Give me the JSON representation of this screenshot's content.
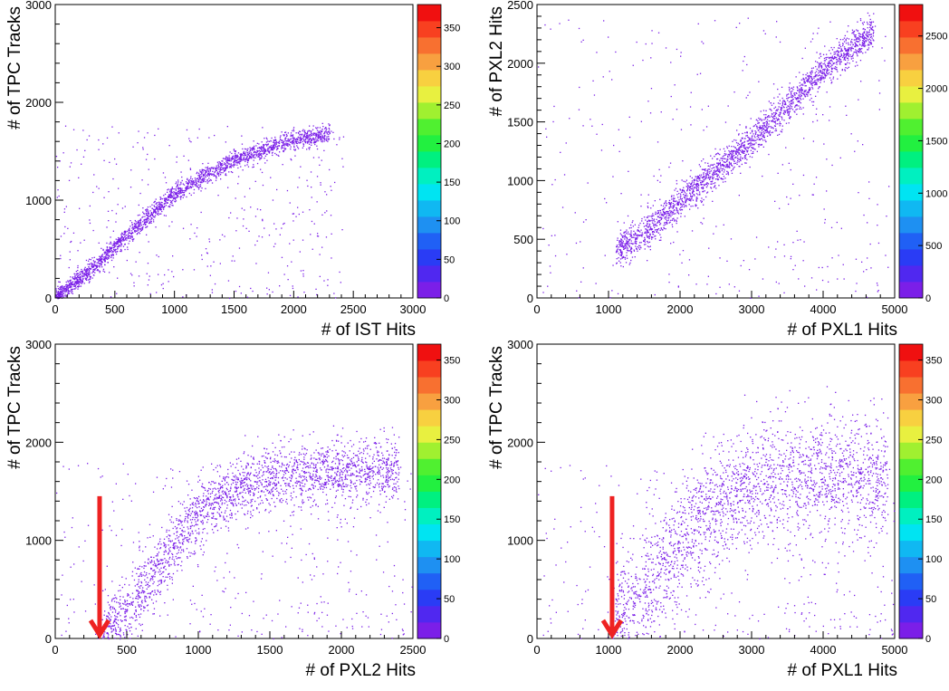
{
  "chart_data": [
    {
      "type": "heatmap",
      "xlabel": "# of IST Hits",
      "ylabel": "# of TPC Tracks",
      "xlim": [
        0,
        3000
      ],
      "ylim": [
        0,
        3000
      ],
      "xticks": [
        "0",
        "500",
        "1000",
        "1500",
        "2000",
        "2500",
        "3000"
      ],
      "yticks": [
        "0",
        "1000",
        "2000",
        "3000"
      ],
      "zlim": [
        0,
        380
      ],
      "zticks": [
        "0",
        "50",
        "100",
        "150",
        "200",
        "250",
        "300",
        "350"
      ],
      "correlation_band": [
        [
          0,
          0
        ],
        [
          300,
          300
        ],
        [
          600,
          640
        ],
        [
          1000,
          1080
        ],
        [
          1500,
          1420
        ],
        [
          2000,
          1620
        ],
        [
          2300,
          1680
        ]
      ],
      "band_width": 45,
      "scatter_note": "",
      "colors": {
        "marks": "#7b1fe8"
      }
    },
    {
      "type": "heatmap",
      "xlabel": "# of PXL1 Hits",
      "ylabel": "# of PXL2 Hits",
      "xlim": [
        0,
        5000
      ],
      "ylim": [
        0,
        2500
      ],
      "xticks": [
        "0",
        "1000",
        "2000",
        "3000",
        "4000",
        "5000"
      ],
      "yticks": [
        "0",
        "500",
        "1000",
        "1500",
        "2000",
        "2500"
      ],
      "zlim": [
        0,
        2800
      ],
      "zticks": [
        "0",
        "500",
        "1000",
        "1500",
        "2000",
        "2500"
      ],
      "correlation_band": [
        [
          1100,
          390
        ],
        [
          1500,
          560
        ],
        [
          2000,
          830
        ],
        [
          2500,
          1080
        ],
        [
          3000,
          1350
        ],
        [
          3500,
          1650
        ],
        [
          4000,
          1950
        ],
        [
          4700,
          2280
        ]
      ],
      "band_width": 70,
      "colors": {
        "marks": "#7b1fe8"
      }
    },
    {
      "type": "heatmap",
      "xlabel": "# of PXL2 Hits",
      "ylabel": "# of TPC Tracks",
      "xlim": [
        0,
        2500
      ],
      "ylim": [
        0,
        3000
      ],
      "xticks": [
        "0",
        "500",
        "1000",
        "1500",
        "2000",
        "2500"
      ],
      "yticks": [
        "0",
        "1000",
        "2000",
        "3000"
      ],
      "zlim": [
        0,
        370
      ],
      "zticks": [
        "0",
        "50",
        "100",
        "150",
        "200",
        "250",
        "300",
        "350"
      ],
      "correlation_band": [
        [
          330,
          0
        ],
        [
          500,
          300
        ],
        [
          700,
          700
        ],
        [
          900,
          1100
        ],
        [
          1100,
          1400
        ],
        [
          1400,
          1620
        ],
        [
          1800,
          1700
        ],
        [
          2400,
          1720
        ]
      ],
      "band_width": 160,
      "arrow": {
        "x": 310,
        "y_top": 1450,
        "y_bottom": 0,
        "color": "#ee2222"
      },
      "colors": {
        "marks": "#7b1fe8"
      }
    },
    {
      "type": "heatmap",
      "xlabel": "# of PXL1 Hits",
      "ylabel": "# of TPC Tracks",
      "xlim": [
        0,
        5000
      ],
      "ylim": [
        0,
        3000
      ],
      "xticks": [
        "0",
        "1000",
        "2000",
        "3000",
        "4000",
        "5000"
      ],
      "yticks": [
        "0",
        "1000",
        "2000",
        "3000"
      ],
      "zlim": [
        0,
        370
      ],
      "zticks": [
        "0",
        "50",
        "100",
        "150",
        "200",
        "250",
        "300",
        "350"
      ],
      "correlation_band": [
        [
          1050,
          0
        ],
        [
          1400,
          400
        ],
        [
          1800,
          800
        ],
        [
          2200,
          1150
        ],
        [
          2700,
          1450
        ],
        [
          3200,
          1650
        ],
        [
          4000,
          1700
        ],
        [
          4900,
          1620
        ]
      ],
      "band_width": 300,
      "arrow": {
        "x": 1050,
        "y_top": 1450,
        "y_bottom": 0,
        "color": "#ee2222"
      },
      "colors": {
        "marks": "#7b1fe8"
      }
    }
  ],
  "palette": [
    "#7b1fe8",
    "#5028f0",
    "#2a3cf5",
    "#2060f5",
    "#1e90f2",
    "#10b8f2",
    "#00e4f2",
    "#00f0c0",
    "#00f080",
    "#22f040",
    "#50f030",
    "#a0f030",
    "#e8f040",
    "#f8d040",
    "#f8a040",
    "#f87030",
    "#f84020",
    "#f01010"
  ]
}
